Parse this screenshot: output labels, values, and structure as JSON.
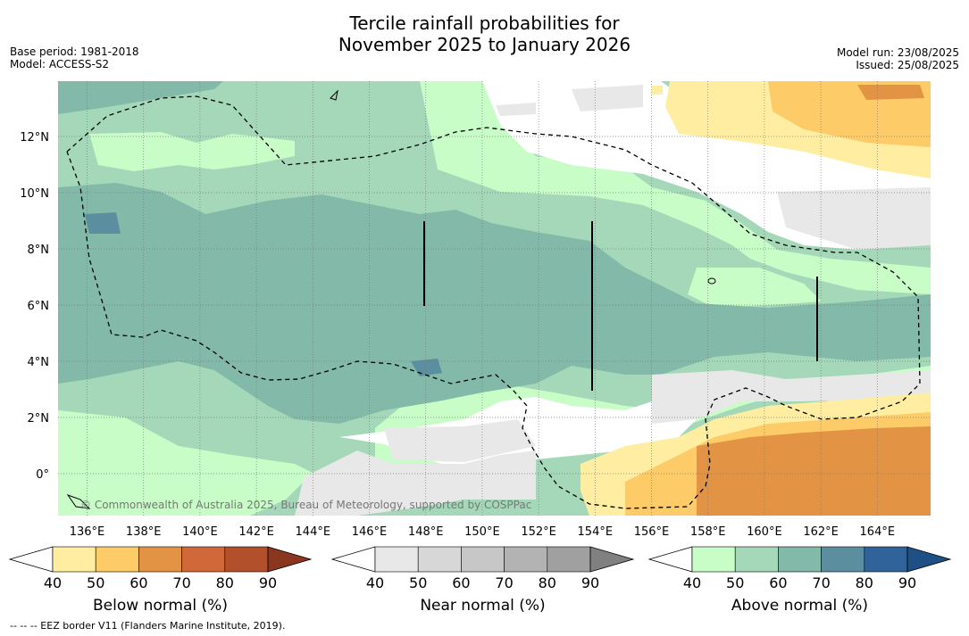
{
  "title_line1": "Tercile rainfall probabilities for",
  "title_line2": "November 2025 to January 2026",
  "left_meta": [
    "Base period: 1981-2018",
    "Model: ACCESS-S2"
  ],
  "right_meta": [
    "Model run: 23/08/2025",
    "Issued: 25/08/2025"
  ],
  "copyright": "© Commonwealth of Australia 2025, Bureau of Meteorology, supported by COSPPac",
  "lat_labels": [
    "12°N",
    "10°N",
    "8°N",
    "6°N",
    "4°N",
    "2°N",
    "0°"
  ],
  "lon_labels": [
    "136°E",
    "138°E",
    "140°E",
    "142°E",
    "144°E",
    "146°E",
    "148°E",
    "150°E",
    "152°E",
    "154°E",
    "156°E",
    "158°E",
    "160°E",
    "162°E",
    "164°E"
  ],
  "colorbars": [
    {
      "title": "Below normal (%)",
      "ticks": [
        "40",
        "50",
        "60",
        "70",
        "80",
        "90"
      ],
      "colors": [
        "#ffffff",
        "#ffeea1",
        "#fdcb67",
        "#e29444",
        "#d0683a",
        "#b2502b",
        "#8b3620"
      ]
    },
    {
      "title": "Near normal (%)",
      "ticks": [
        "40",
        "50",
        "60",
        "70",
        "80",
        "90"
      ],
      "colors": [
        "#ffffff",
        "#e8e8e8",
        "#d7d7d7",
        "#c7c7c7",
        "#b3b3b3",
        "#a0a0a0",
        "#808080"
      ]
    },
    {
      "title": "Above normal (%)",
      "ticks": [
        "40",
        "50",
        "60",
        "70",
        "80",
        "90"
      ],
      "colors": [
        "#ffffff",
        "#c8fdc8",
        "#a4d8b9",
        "#82b9a8",
        "#5b8fa0",
        "#30639a",
        "#1e4f85"
      ]
    }
  ],
  "footnote": "--  --  -- EEZ border V11 (Flanders Marine Institute, 2019)."
}
